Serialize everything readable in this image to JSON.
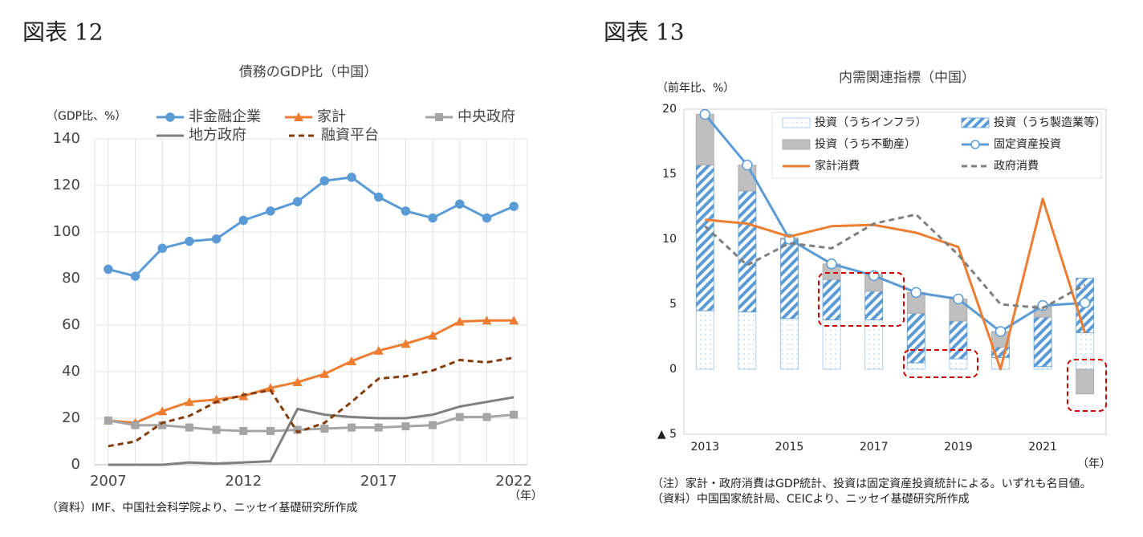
{
  "chart_data": [
    {
      "type": "line",
      "figure_label": "図表 12",
      "title": "債務のGDP比（中国）",
      "y_label": "（GDP比、%）",
      "x_unit": "（年）",
      "source": "（資料）IMF、中国社会科学院より、ニッセイ基礎研究所作成",
      "x": [
        2007,
        2008,
        2009,
        2010,
        2011,
        2012,
        2013,
        2014,
        2015,
        2016,
        2017,
        2018,
        2019,
        2020,
        2021,
        2022
      ],
      "xlim": [
        2006.5,
        2022.5
      ],
      "xticks": [
        2007,
        2012,
        2017,
        2022
      ],
      "ylim": [
        0,
        140
      ],
      "yticks": [
        0,
        20,
        40,
        60,
        80,
        100,
        120,
        140
      ],
      "grid": true,
      "series": [
        {
          "name": "非金融企業",
          "color": "#5b9bd5",
          "marker": "circle",
          "values": [
            84,
            81,
            93,
            96,
            97,
            105,
            109,
            113,
            122,
            123.5,
            115,
            109,
            106,
            112,
            106,
            111
          ]
        },
        {
          "name": "家計",
          "color": "#ed7d31",
          "marker": "triangle",
          "values": [
            19,
            18,
            23,
            27,
            28,
            29.5,
            33,
            35.5,
            39,
            44.5,
            49,
            52,
            55.5,
            61.5,
            62,
            62
          ]
        },
        {
          "name": "中央政府",
          "color": "#a5a5a5",
          "marker": "square",
          "values": [
            19,
            17,
            17,
            16,
            15,
            14.5,
            14.5,
            15,
            15.5,
            16,
            16,
            16.5,
            17,
            20.5,
            20.5,
            21.5
          ]
        },
        {
          "name": "地方政府",
          "color": "#7f7f7f",
          "values": [
            0,
            0,
            0,
            1,
            0.5,
            1,
            1.5,
            24,
            21.5,
            20.5,
            20,
            20,
            21.5,
            25,
            27,
            29
          ]
        },
        {
          "name": "融資平台",
          "color": "#843c0c",
          "dash": true,
          "values": [
            8,
            10,
            18,
            21,
            27,
            30,
            32,
            14,
            18,
            27,
            37,
            38,
            40.5,
            45,
            44,
            46
          ]
        }
      ]
    },
    {
      "type": "combo",
      "figure_label": "図表 13",
      "title": "内需関連指標（中国）",
      "y_label": "（前年比、%）",
      "x_unit": "（年）",
      "notes": [
        "（注）家計・政府消費はGDP統計、投資は固定資産投資統計による。いずれも名目値。",
        "（資料）中国国家統計局、CEICより、ニッセイ基礎研究所作成"
      ],
      "x": [
        2013,
        2014,
        2015,
        2016,
        2017,
        2018,
        2019,
        2020,
        2021,
        2022
      ],
      "xlim": [
        2012.5,
        2022.5
      ],
      "xticks": [
        2013,
        2015,
        2017,
        2019,
        2021
      ],
      "ylim": [
        -5,
        20
      ],
      "yticks": [
        {
          "value": -5,
          "label": "▲ 5"
        },
        0,
        5,
        10,
        15,
        20
      ],
      "series": [
        {
          "name": "投資（うちインフラ）",
          "kind": "bar",
          "pattern": "dots",
          "color": "#9dc3e6",
          "values": [
            4.5,
            4.4,
            3.9,
            3.8,
            3.8,
            0.5,
            0.8,
            0.9,
            0.2,
            2.8
          ]
        },
        {
          "name": "投資（うち製造業等）",
          "kind": "bar",
          "pattern": "hatch",
          "color": "#5b9bd5",
          "values": [
            11.2,
            9.3,
            6.1,
            3.1,
            2.2,
            3.8,
            2.9,
            0.8,
            3.8,
            4.2
          ]
        },
        {
          "name": "投資（うち不動産）",
          "kind": "bar",
          "pattern": "solid",
          "color": "#bfbfbf",
          "values": [
            3.9,
            2.0,
            0.1,
            1.2,
            1.3,
            1.6,
            1.7,
            1.2,
            0.9,
            -1.9
          ]
        },
        {
          "name": "固定資産投資",
          "kind": "line",
          "marker": "circle",
          "color": "#5b9bd5",
          "values": [
            19.6,
            15.7,
            10.0,
            8.1,
            7.2,
            5.9,
            5.4,
            2.9,
            4.9,
            5.1
          ]
        },
        {
          "name": "家計消費",
          "kind": "line",
          "color": "#ed7d31",
          "values": [
            11.5,
            11.2,
            10.2,
            11.0,
            11.1,
            10.5,
            9.4,
            0.0,
            13.1,
            2.8
          ]
        },
        {
          "name": "政府消費",
          "kind": "line",
          "dash": true,
          "color": "#7f7f7f",
          "values": [
            11.0,
            8.0,
            9.7,
            9.3,
            11.2,
            11.9,
            8.8,
            5.0,
            4.7,
            6.5
          ]
        }
      ]
    }
  ]
}
